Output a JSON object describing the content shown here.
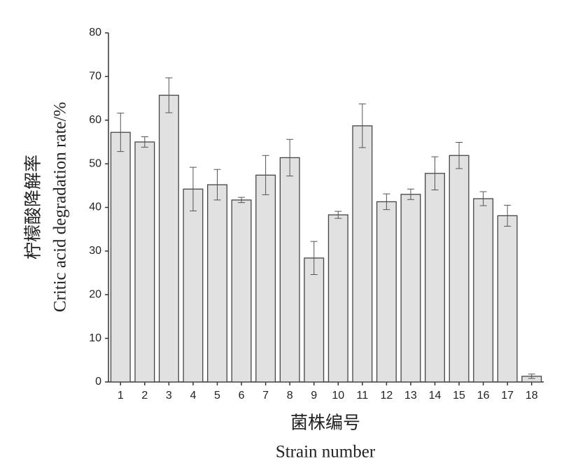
{
  "chart_data": {
    "type": "bar",
    "categories": [
      "1",
      "2",
      "3",
      "4",
      "5",
      "6",
      "7",
      "8",
      "9",
      "10",
      "11",
      "12",
      "13",
      "14",
      "15",
      "16",
      "17",
      "18"
    ],
    "values": [
      57.2,
      55,
      65.7,
      44.2,
      45.2,
      41.7,
      47.4,
      51.4,
      28.4,
      38.3,
      58.7,
      41.3,
      43,
      47.8,
      51.9,
      42,
      38.1,
      1.3
    ],
    "errors": [
      4.4,
      1.2,
      4,
      5,
      3.5,
      0.6,
      4.5,
      4.2,
      3.8,
      0.8,
      5,
      1.8,
      1.2,
      3.8,
      3,
      1.6,
      2.4,
      0.5
    ],
    "color": "#e1e1e1",
    "ylim": [
      0,
      80
    ],
    "yticks": [
      0,
      10,
      20,
      30,
      40,
      50,
      60,
      70,
      80
    ],
    "xlabel": [
      "菌株编号",
      "Strain number"
    ],
    "ylabel": [
      "柠檬酸降解率",
      "Critic acid degradation rate/%"
    ]
  }
}
